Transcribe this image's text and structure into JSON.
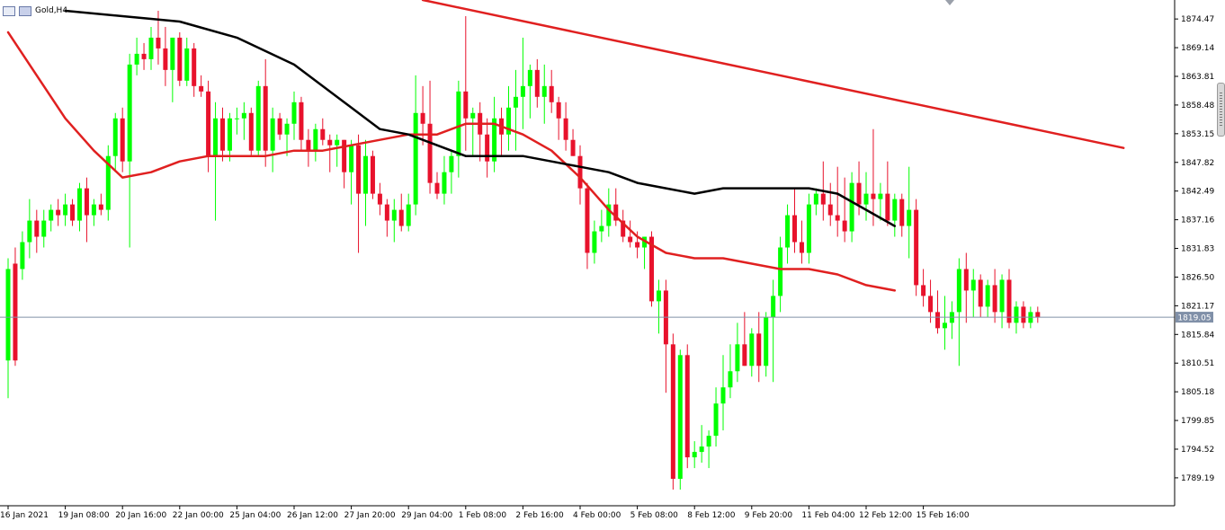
{
  "window": {
    "symbol_label": "Gold,H4",
    "icons": [
      "chart-window-icon",
      "chart-window-icon"
    ]
  },
  "colors": {
    "bull": "#00ff00",
    "bear": "#e8122c",
    "ma_fast": "#e02020",
    "ma_slow": "#000000",
    "trendline": "#e02020",
    "price_line": "#8090a8",
    "axis": "#000000",
    "background": "#ffffff"
  },
  "chart_data": {
    "type": "candlestick",
    "title": "Gold,H4",
    "ylim": [
      1784,
      1878
    ],
    "y_ticks": [
      "1874.47",
      "1869.14",
      "1863.81",
      "1858.48",
      "1853.15",
      "1847.82",
      "1842.49",
      "1837.16",
      "1831.83",
      "1826.50",
      "1821.17",
      "1815.84",
      "1810.51",
      "1805.18",
      "1799.85",
      "1794.52",
      "1789.19"
    ],
    "current_price": "1819.05",
    "x_tick_labels": [
      "16 Jan 2021",
      "19 Jan 08:00",
      "20 Jan 16:00",
      "22 Jan 00:00",
      "25 Jan 04:00",
      "26 Jan 12:00",
      "27 Jan 20:00",
      "29 Jan 04:00",
      "1 Feb 08:00",
      "2 Feb 16:00",
      "4 Feb 00:00",
      "5 Feb 08:00",
      "8 Feb 12:00",
      "9 Feb 20:00",
      "11 Feb 04:00",
      "12 Feb 12:00",
      "15 Feb 16:00"
    ],
    "x_tick_bars": [
      0,
      8,
      16,
      24,
      32,
      40,
      48,
      56,
      64,
      72,
      80,
      88,
      96,
      104,
      112,
      120,
      128
    ],
    "candles": [
      {
        "o": 1811,
        "h": 1830,
        "l": 1804,
        "c": 1828
      },
      {
        "o": 1829,
        "h": 1832,
        "l": 1810,
        "c": 1811
      },
      {
        "o": 1828,
        "h": 1835,
        "l": 1826,
        "c": 1833
      },
      {
        "o": 1833,
        "h": 1841,
        "l": 1830,
        "c": 1837
      },
      {
        "o": 1837,
        "h": 1839,
        "l": 1831,
        "c": 1834
      },
      {
        "o": 1834,
        "h": 1839,
        "l": 1832,
        "c": 1837
      },
      {
        "o": 1837,
        "h": 1840,
        "l": 1835,
        "c": 1839
      },
      {
        "o": 1839,
        "h": 1841,
        "l": 1836,
        "c": 1838
      },
      {
        "o": 1838,
        "h": 1842,
        "l": 1836,
        "c": 1840
      },
      {
        "o": 1840,
        "h": 1841,
        "l": 1836,
        "c": 1837
      },
      {
        "o": 1837,
        "h": 1844,
        "l": 1835,
        "c": 1843
      },
      {
        "o": 1843,
        "h": 1845,
        "l": 1833,
        "c": 1838
      },
      {
        "o": 1838,
        "h": 1841,
        "l": 1836,
        "c": 1840
      },
      {
        "o": 1840,
        "h": 1842,
        "l": 1838,
        "c": 1839
      },
      {
        "o": 1839,
        "h": 1851,
        "l": 1837,
        "c": 1849
      },
      {
        "o": 1849,
        "h": 1857,
        "l": 1846,
        "c": 1856
      },
      {
        "o": 1856,
        "h": 1858,
        "l": 1846,
        "c": 1848
      },
      {
        "o": 1848,
        "h": 1868,
        "l": 1832,
        "c": 1866
      },
      {
        "o": 1866,
        "h": 1871,
        "l": 1864,
        "c": 1868
      },
      {
        "o": 1868,
        "h": 1870,
        "l": 1865,
        "c": 1867
      },
      {
        "o": 1867,
        "h": 1873,
        "l": 1865,
        "c": 1871
      },
      {
        "o": 1871,
        "h": 1876,
        "l": 1866,
        "c": 1869
      },
      {
        "o": 1869,
        "h": 1873,
        "l": 1862,
        "c": 1865
      },
      {
        "o": 1865,
        "h": 1871,
        "l": 1859,
        "c": 1871
      },
      {
        "o": 1871,
        "h": 1872,
        "l": 1862,
        "c": 1863
      },
      {
        "o": 1863,
        "h": 1871,
        "l": 1862,
        "c": 1869
      },
      {
        "o": 1869,
        "h": 1870,
        "l": 1860,
        "c": 1862
      },
      {
        "o": 1862,
        "h": 1864,
        "l": 1860,
        "c": 1861
      },
      {
        "o": 1861,
        "h": 1863,
        "l": 1846,
        "c": 1849
      },
      {
        "o": 1849,
        "h": 1859,
        "l": 1837,
        "c": 1856
      },
      {
        "o": 1856,
        "h": 1858,
        "l": 1848,
        "c": 1850
      },
      {
        "o": 1850,
        "h": 1857,
        "l": 1848,
        "c": 1856
      },
      {
        "o": 1856,
        "h": 1858,
        "l": 1853,
        "c": 1856
      },
      {
        "o": 1856,
        "h": 1859,
        "l": 1852,
        "c": 1857
      },
      {
        "o": 1857,
        "h": 1858,
        "l": 1849,
        "c": 1850
      },
      {
        "o": 1850,
        "h": 1863,
        "l": 1849,
        "c": 1862
      },
      {
        "o": 1862,
        "h": 1867,
        "l": 1847,
        "c": 1850
      },
      {
        "o": 1850,
        "h": 1858,
        "l": 1846,
        "c": 1856
      },
      {
        "o": 1856,
        "h": 1857,
        "l": 1852,
        "c": 1853
      },
      {
        "o": 1853,
        "h": 1856,
        "l": 1849,
        "c": 1855
      },
      {
        "o": 1855,
        "h": 1861,
        "l": 1852,
        "c": 1859
      },
      {
        "o": 1859,
        "h": 1860,
        "l": 1850,
        "c": 1852
      },
      {
        "o": 1852,
        "h": 1854,
        "l": 1847,
        "c": 1850
      },
      {
        "o": 1850,
        "h": 1855,
        "l": 1848,
        "c": 1854
      },
      {
        "o": 1854,
        "h": 1856,
        "l": 1851,
        "c": 1852
      },
      {
        "o": 1852,
        "h": 1853,
        "l": 1846,
        "c": 1851
      },
      {
        "o": 1851,
        "h": 1853,
        "l": 1847,
        "c": 1852
      },
      {
        "o": 1852,
        "h": 1852,
        "l": 1843,
        "c": 1846
      },
      {
        "o": 1846,
        "h": 1852,
        "l": 1840,
        "c": 1851
      },
      {
        "o": 1851,
        "h": 1853,
        "l": 1831,
        "c": 1842
      },
      {
        "o": 1842,
        "h": 1852,
        "l": 1836,
        "c": 1849
      },
      {
        "o": 1849,
        "h": 1850,
        "l": 1841,
        "c": 1842
      },
      {
        "o": 1842,
        "h": 1844,
        "l": 1838,
        "c": 1840
      },
      {
        "o": 1840,
        "h": 1841,
        "l": 1834,
        "c": 1837
      },
      {
        "o": 1837,
        "h": 1841,
        "l": 1833,
        "c": 1839
      },
      {
        "o": 1839,
        "h": 1842,
        "l": 1835,
        "c": 1836
      },
      {
        "o": 1836,
        "h": 1842,
        "l": 1835,
        "c": 1840
      },
      {
        "o": 1840,
        "h": 1864,
        "l": 1838,
        "c": 1857
      },
      {
        "o": 1857,
        "h": 1862,
        "l": 1851,
        "c": 1855
      },
      {
        "o": 1855,
        "h": 1863,
        "l": 1842,
        "c": 1844
      },
      {
        "o": 1844,
        "h": 1846,
        "l": 1841,
        "c": 1842
      },
      {
        "o": 1842,
        "h": 1849,
        "l": 1840,
        "c": 1846
      },
      {
        "o": 1846,
        "h": 1850,
        "l": 1842,
        "c": 1849
      },
      {
        "o": 1849,
        "h": 1863,
        "l": 1845,
        "c": 1861
      },
      {
        "o": 1861,
        "h": 1875,
        "l": 1850,
        "c": 1856
      },
      {
        "o": 1856,
        "h": 1858,
        "l": 1849,
        "c": 1857
      },
      {
        "o": 1857,
        "h": 1859,
        "l": 1848,
        "c": 1853
      },
      {
        "o": 1853,
        "h": 1856,
        "l": 1845,
        "c": 1848
      },
      {
        "o": 1848,
        "h": 1860,
        "l": 1846,
        "c": 1856
      },
      {
        "o": 1856,
        "h": 1858,
        "l": 1849,
        "c": 1853
      },
      {
        "o": 1853,
        "h": 1862,
        "l": 1850,
        "c": 1858
      },
      {
        "o": 1858,
        "h": 1865,
        "l": 1850,
        "c": 1860
      },
      {
        "o": 1860,
        "h": 1871,
        "l": 1854,
        "c": 1862
      },
      {
        "o": 1862,
        "h": 1866,
        "l": 1856,
        "c": 1865
      },
      {
        "o": 1865,
        "h": 1867,
        "l": 1858,
        "c": 1860
      },
      {
        "o": 1860,
        "h": 1866,
        "l": 1855,
        "c": 1862
      },
      {
        "o": 1862,
        "h": 1865,
        "l": 1857,
        "c": 1859
      },
      {
        "o": 1859,
        "h": 1860,
        "l": 1852,
        "c": 1856
      },
      {
        "o": 1856,
        "h": 1859,
        "l": 1850,
        "c": 1852
      },
      {
        "o": 1852,
        "h": 1854,
        "l": 1849,
        "c": 1849
      },
      {
        "o": 1849,
        "h": 1851,
        "l": 1840,
        "c": 1843
      },
      {
        "o": 1843,
        "h": 1844,
        "l": 1828,
        "c": 1831
      },
      {
        "o": 1831,
        "h": 1837,
        "l": 1829,
        "c": 1835
      },
      {
        "o": 1835,
        "h": 1839,
        "l": 1833,
        "c": 1836
      },
      {
        "o": 1836,
        "h": 1843,
        "l": 1834,
        "c": 1840
      },
      {
        "o": 1840,
        "h": 1843,
        "l": 1836,
        "c": 1837
      },
      {
        "o": 1837,
        "h": 1839,
        "l": 1833,
        "c": 1834
      },
      {
        "o": 1834,
        "h": 1837,
        "l": 1832,
        "c": 1833
      },
      {
        "o": 1833,
        "h": 1835,
        "l": 1830,
        "c": 1832
      },
      {
        "o": 1832,
        "h": 1834,
        "l": 1828,
        "c": 1834
      },
      {
        "o": 1834,
        "h": 1835,
        "l": 1821,
        "c": 1822
      },
      {
        "o": 1822,
        "h": 1826,
        "l": 1816,
        "c": 1824
      },
      {
        "o": 1824,
        "h": 1826,
        "l": 1805,
        "c": 1814
      },
      {
        "o": 1814,
        "h": 1816,
        "l": 1787,
        "c": 1789
      },
      {
        "o": 1789,
        "h": 1813,
        "l": 1787,
        "c": 1812
      },
      {
        "o": 1812,
        "h": 1814,
        "l": 1791,
        "c": 1793
      },
      {
        "o": 1793,
        "h": 1796,
        "l": 1791,
        "c": 1794
      },
      {
        "o": 1794,
        "h": 1799,
        "l": 1792,
        "c": 1795
      },
      {
        "o": 1795,
        "h": 1798,
        "l": 1791,
        "c": 1797
      },
      {
        "o": 1797,
        "h": 1806,
        "l": 1795,
        "c": 1803
      },
      {
        "o": 1803,
        "h": 1812,
        "l": 1798,
        "c": 1806
      },
      {
        "o": 1806,
        "h": 1814,
        "l": 1804,
        "c": 1809
      },
      {
        "o": 1809,
        "h": 1818,
        "l": 1807,
        "c": 1814
      },
      {
        "o": 1814,
        "h": 1820,
        "l": 1810,
        "c": 1810
      },
      {
        "o": 1810,
        "h": 1817,
        "l": 1808,
        "c": 1816
      },
      {
        "o": 1816,
        "h": 1820,
        "l": 1807,
        "c": 1810
      },
      {
        "o": 1810,
        "h": 1820,
        "l": 1808,
        "c": 1819
      },
      {
        "o": 1819,
        "h": 1826,
        "l": 1807,
        "c": 1823
      },
      {
        "o": 1823,
        "h": 1834,
        "l": 1820,
        "c": 1832
      },
      {
        "o": 1832,
        "h": 1840,
        "l": 1829,
        "c": 1838
      },
      {
        "o": 1838,
        "h": 1843,
        "l": 1831,
        "c": 1833
      },
      {
        "o": 1833,
        "h": 1837,
        "l": 1829,
        "c": 1831
      },
      {
        "o": 1831,
        "h": 1842,
        "l": 1829,
        "c": 1840
      },
      {
        "o": 1840,
        "h": 1843,
        "l": 1838,
        "c": 1842
      },
      {
        "o": 1842,
        "h": 1848,
        "l": 1837,
        "c": 1840
      },
      {
        "o": 1840,
        "h": 1844,
        "l": 1836,
        "c": 1838
      },
      {
        "o": 1838,
        "h": 1847,
        "l": 1834,
        "c": 1837
      },
      {
        "o": 1837,
        "h": 1845,
        "l": 1833,
        "c": 1835
      },
      {
        "o": 1835,
        "h": 1846,
        "l": 1833,
        "c": 1844
      },
      {
        "o": 1844,
        "h": 1848,
        "l": 1838,
        "c": 1840
      },
      {
        "o": 1840,
        "h": 1846,
        "l": 1837,
        "c": 1842
      },
      {
        "o": 1842,
        "h": 1854,
        "l": 1836,
        "c": 1841
      },
      {
        "o": 1841,
        "h": 1844,
        "l": 1837,
        "c": 1842
      },
      {
        "o": 1842,
        "h": 1848,
        "l": 1836,
        "c": 1837
      },
      {
        "o": 1837,
        "h": 1842,
        "l": 1834,
        "c": 1841
      },
      {
        "o": 1841,
        "h": 1842,
        "l": 1834,
        "c": 1836
      },
      {
        "o": 1836,
        "h": 1847,
        "l": 1830,
        "c": 1839
      },
      {
        "o": 1839,
        "h": 1841,
        "l": 1823,
        "c": 1825
      },
      {
        "o": 1825,
        "h": 1828,
        "l": 1821,
        "c": 1823
      },
      {
        "o": 1823,
        "h": 1826,
        "l": 1818,
        "c": 1820
      },
      {
        "o": 1820,
        "h": 1824,
        "l": 1816,
        "c": 1817
      },
      {
        "o": 1817,
        "h": 1823,
        "l": 1813,
        "c": 1818
      },
      {
        "o": 1818,
        "h": 1822,
        "l": 1815,
        "c": 1820
      },
      {
        "o": 1820,
        "h": 1830,
        "l": 1810,
        "c": 1828
      },
      {
        "o": 1828,
        "h": 1831,
        "l": 1818,
        "c": 1824
      },
      {
        "o": 1824,
        "h": 1828,
        "l": 1819,
        "c": 1826
      },
      {
        "o": 1826,
        "h": 1827,
        "l": 1819,
        "c": 1821
      },
      {
        "o": 1821,
        "h": 1826,
        "l": 1819,
        "c": 1825
      },
      {
        "o": 1825,
        "h": 1828,
        "l": 1818,
        "c": 1820
      },
      {
        "o": 1820,
        "h": 1827,
        "l": 1817,
        "c": 1826
      },
      {
        "o": 1826,
        "h": 1828,
        "l": 1817,
        "c": 1818
      },
      {
        "o": 1818,
        "h": 1822,
        "l": 1816,
        "c": 1821
      },
      {
        "o": 1821,
        "h": 1822,
        "l": 1817,
        "c": 1818
      },
      {
        "o": 1818,
        "h": 1821,
        "l": 1817,
        "c": 1820
      },
      {
        "o": 1820,
        "h": 1821,
        "l": 1818,
        "c": 1819
      }
    ],
    "series": [
      {
        "kind": "moving-average",
        "color": "#e02020",
        "values": [
          [
            0,
            1872
          ],
          [
            4,
            1864
          ],
          [
            8,
            1856
          ],
          [
            12,
            1850
          ],
          [
            16,
            1845
          ],
          [
            20,
            1846
          ],
          [
            24,
            1848
          ],
          [
            28,
            1849
          ],
          [
            32,
            1849
          ],
          [
            36,
            1849
          ],
          [
            40,
            1850
          ],
          [
            44,
            1850
          ],
          [
            48,
            1851
          ],
          [
            52,
            1852
          ],
          [
            56,
            1853
          ],
          [
            60,
            1853
          ],
          [
            64,
            1855
          ],
          [
            68,
            1855
          ],
          [
            72,
            1853
          ],
          [
            76,
            1850
          ],
          [
            80,
            1845
          ],
          [
            84,
            1839
          ],
          [
            88,
            1834
          ],
          [
            92,
            1831
          ],
          [
            96,
            1830
          ],
          [
            100,
            1830
          ],
          [
            104,
            1829
          ],
          [
            108,
            1828
          ],
          [
            112,
            1828
          ],
          [
            116,
            1827
          ],
          [
            120,
            1825
          ],
          [
            124,
            1824
          ]
        ]
      },
      {
        "kind": "moving-average",
        "color": "#000000",
        "values": [
          [
            8,
            1876
          ],
          [
            16,
            1875
          ],
          [
            24,
            1874
          ],
          [
            32,
            1871
          ],
          [
            40,
            1866
          ],
          [
            48,
            1858
          ],
          [
            52,
            1854
          ],
          [
            56,
            1853
          ],
          [
            60,
            1851
          ],
          [
            64,
            1849
          ],
          [
            68,
            1849
          ],
          [
            72,
            1849
          ],
          [
            76,
            1848
          ],
          [
            80,
            1847
          ],
          [
            84,
            1846
          ],
          [
            88,
            1844
          ],
          [
            92,
            1843
          ],
          [
            96,
            1842
          ],
          [
            100,
            1843
          ],
          [
            104,
            1843
          ],
          [
            108,
            1843
          ],
          [
            112,
            1843
          ],
          [
            116,
            1842
          ],
          [
            120,
            1839
          ],
          [
            124,
            1836
          ]
        ]
      },
      {
        "kind": "trendline",
        "color": "#e02020",
        "values": [
          [
            58,
            1878
          ],
          [
            156,
            1850.5
          ]
        ]
      }
    ]
  }
}
